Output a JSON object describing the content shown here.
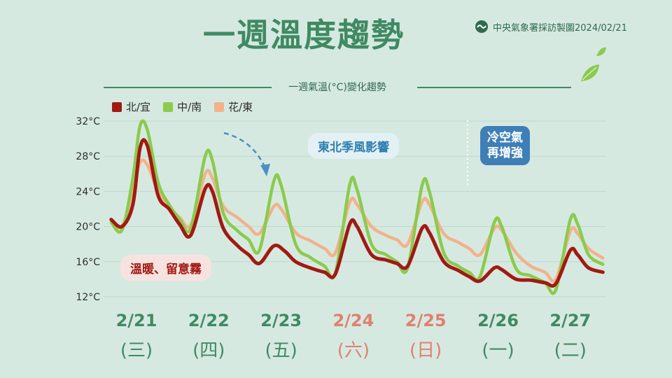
{
  "header": {
    "title": "一週溫度趨勢",
    "source": "中央氣象署採訪製圖2024/02/21"
  },
  "subtitle": "一週氣溫(°C)變化趨勢",
  "annotations": {
    "warm": "溫暖、留意霧",
    "monsoon": "東北季風影響",
    "cold_line1": "冷空氣",
    "cold_line2": "再增強"
  },
  "days": [
    {
      "date": "2/21",
      "weekday": "(三)",
      "weekend": false
    },
    {
      "date": "2/22",
      "weekday": "(四)",
      "weekend": false
    },
    {
      "date": "2/23",
      "weekday": "(五)",
      "weekend": false
    },
    {
      "date": "2/24",
      "weekday": "(六)",
      "weekend": true
    },
    {
      "date": "2/25",
      "weekday": "(日)",
      "weekend": true
    },
    {
      "date": "2/26",
      "weekday": "(一)",
      "weekend": false
    },
    {
      "date": "2/27",
      "weekday": "(二)",
      "weekend": false
    }
  ],
  "colors": {
    "north": "#a11a12",
    "central_south": "#8acb4c",
    "east": "#f2b28c",
    "accent": "#3f8a63",
    "weekend": "#e08070",
    "grid": "#bfd7cc",
    "arrow": "#4a90c8"
  },
  "chart_data": {
    "type": "line",
    "title": "一週氣溫(°C)變化趨勢",
    "x_unit": "day index (0 = 2/21 00:00, 1 = 2/22 00:00, ...)",
    "yticks": [
      12,
      16,
      20,
      24,
      28,
      32
    ],
    "ytick_labels": [
      "12°C",
      "16°C",
      "20°C",
      "24°C",
      "28°C",
      "32°C"
    ],
    "ylim": [
      12,
      32
    ],
    "xlim": [
      -0.35,
      6.45
    ],
    "legend": "top-left",
    "grid": true,
    "series": [
      {
        "name": "北/宜",
        "color": "#a11a12",
        "points": [
          [
            -0.35,
            20.8
          ],
          [
            -0.2,
            20.0
          ],
          [
            -0.05,
            22.5
          ],
          [
            0.05,
            29.0
          ],
          [
            0.15,
            29.2
          ],
          [
            0.3,
            23.5
          ],
          [
            0.45,
            22.0
          ],
          [
            0.6,
            20.2
          ],
          [
            0.75,
            19.0
          ],
          [
            0.95,
            24.3
          ],
          [
            1.05,
            24.0
          ],
          [
            1.2,
            19.8
          ],
          [
            1.4,
            17.8
          ],
          [
            1.55,
            16.8
          ],
          [
            1.7,
            15.8
          ],
          [
            1.9,
            17.8
          ],
          [
            2.05,
            17.2
          ],
          [
            2.2,
            16.0
          ],
          [
            2.4,
            15.3
          ],
          [
            2.6,
            14.8
          ],
          [
            2.75,
            14.6
          ],
          [
            2.95,
            20.3
          ],
          [
            3.05,
            20.0
          ],
          [
            3.25,
            16.8
          ],
          [
            3.45,
            16.2
          ],
          [
            3.6,
            15.8
          ],
          [
            3.75,
            15.5
          ],
          [
            3.95,
            19.8
          ],
          [
            4.05,
            19.3
          ],
          [
            4.25,
            16.0
          ],
          [
            4.45,
            15.0
          ],
          [
            4.6,
            14.3
          ],
          [
            4.75,
            13.8
          ],
          [
            4.95,
            15.3
          ],
          [
            5.05,
            15.1
          ],
          [
            5.25,
            14.0
          ],
          [
            5.45,
            13.9
          ],
          [
            5.65,
            13.6
          ],
          [
            5.8,
            13.5
          ],
          [
            6.0,
            17.3
          ],
          [
            6.1,
            16.8
          ],
          [
            6.25,
            15.3
          ],
          [
            6.45,
            14.8
          ]
        ]
      },
      {
        "name": "中/南",
        "color": "#8acb4c",
        "points": [
          [
            -0.35,
            20.5
          ],
          [
            -0.2,
            19.6
          ],
          [
            -0.05,
            25.5
          ],
          [
            0.05,
            31.5
          ],
          [
            0.15,
            31.0
          ],
          [
            0.3,
            25.0
          ],
          [
            0.45,
            22.5
          ],
          [
            0.6,
            20.8
          ],
          [
            0.75,
            19.8
          ],
          [
            0.95,
            28.0
          ],
          [
            1.05,
            27.5
          ],
          [
            1.2,
            21.5
          ],
          [
            1.4,
            19.5
          ],
          [
            1.55,
            18.5
          ],
          [
            1.7,
            17.3
          ],
          [
            1.9,
            25.2
          ],
          [
            2.0,
            24.7
          ],
          [
            2.2,
            18.0
          ],
          [
            2.4,
            16.5
          ],
          [
            2.6,
            15.5
          ],
          [
            2.75,
            14.7
          ],
          [
            2.95,
            24.8
          ],
          [
            3.05,
            24.2
          ],
          [
            3.25,
            18.0
          ],
          [
            3.45,
            16.8
          ],
          [
            3.6,
            16.0
          ],
          [
            3.75,
            15.3
          ],
          [
            3.95,
            24.7
          ],
          [
            4.05,
            24.0
          ],
          [
            4.25,
            17.0
          ],
          [
            4.45,
            15.5
          ],
          [
            4.6,
            14.8
          ],
          [
            4.75,
            14.3
          ],
          [
            4.95,
            20.5
          ],
          [
            5.05,
            20.0
          ],
          [
            5.25,
            15.2
          ],
          [
            5.45,
            14.4
          ],
          [
            5.65,
            13.6
          ],
          [
            5.8,
            12.8
          ],
          [
            6.0,
            20.8
          ],
          [
            6.1,
            20.3
          ],
          [
            6.25,
            16.8
          ],
          [
            6.45,
            15.7
          ]
        ]
      },
      {
        "name": "花/東",
        "color": "#f2b28c",
        "points": [
          [
            -0.35,
            20.5
          ],
          [
            -0.2,
            20.0
          ],
          [
            -0.05,
            24.0
          ],
          [
            0.05,
            27.3
          ],
          [
            0.15,
            27.0
          ],
          [
            0.3,
            24.0
          ],
          [
            0.45,
            22.3
          ],
          [
            0.6,
            21.0
          ],
          [
            0.75,
            20.2
          ],
          [
            0.95,
            26.0
          ],
          [
            1.05,
            25.5
          ],
          [
            1.2,
            22.3
          ],
          [
            1.4,
            21.0
          ],
          [
            1.55,
            20.0
          ],
          [
            1.7,
            19.2
          ],
          [
            1.9,
            22.3
          ],
          [
            2.0,
            22.0
          ],
          [
            2.2,
            19.3
          ],
          [
            2.4,
            18.4
          ],
          [
            2.6,
            17.5
          ],
          [
            2.75,
            17.0
          ],
          [
            2.95,
            22.8
          ],
          [
            3.05,
            22.5
          ],
          [
            3.25,
            20.0
          ],
          [
            3.45,
            19.0
          ],
          [
            3.6,
            18.5
          ],
          [
            3.75,
            18.0
          ],
          [
            3.95,
            22.8
          ],
          [
            4.05,
            22.5
          ],
          [
            4.25,
            19.2
          ],
          [
            4.45,
            18.2
          ],
          [
            4.6,
            17.5
          ],
          [
            4.75,
            16.8
          ],
          [
            4.95,
            19.8
          ],
          [
            5.05,
            19.6
          ],
          [
            5.25,
            17.0
          ],
          [
            5.45,
            15.5
          ],
          [
            5.65,
            14.8
          ],
          [
            5.8,
            14.0
          ],
          [
            6.0,
            19.5
          ],
          [
            6.1,
            19.2
          ],
          [
            6.25,
            17.5
          ],
          [
            6.45,
            16.4
          ]
        ]
      }
    ]
  }
}
